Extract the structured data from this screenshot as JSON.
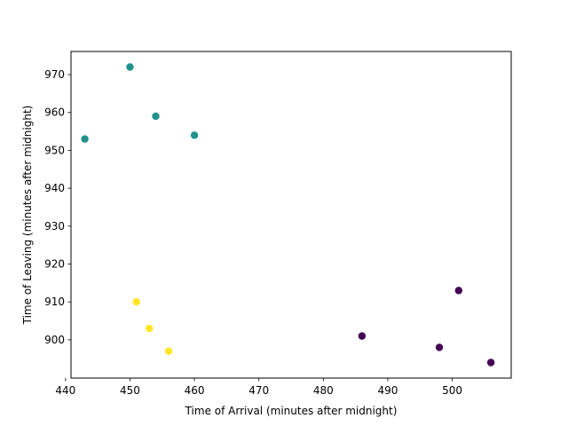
{
  "chart_data": {
    "type": "scatter",
    "title": "",
    "xlabel": "Time of Arrival (minutes after midnight)",
    "ylabel": "Time of Leaving (minutes after midnight)",
    "xlim": [
      440.85,
      509.15
    ],
    "ylim": [
      889.9,
      976.1
    ],
    "xticks": [
      440,
      450,
      460,
      470,
      480,
      490,
      500
    ],
    "yticks": [
      900,
      910,
      920,
      930,
      940,
      950,
      960,
      970
    ],
    "grid": false,
    "series": [
      {
        "color": "#440154",
        "points": [
          {
            "x": 486,
            "y": 901
          },
          {
            "x": 498,
            "y": 898
          },
          {
            "x": 501,
            "y": 913
          },
          {
            "x": 506,
            "y": 894
          }
        ]
      },
      {
        "color": "#21918c",
        "points": [
          {
            "x": 443,
            "y": 953
          },
          {
            "x": 450,
            "y": 972
          },
          {
            "x": 454,
            "y": 959
          },
          {
            "x": 460,
            "y": 954
          }
        ]
      },
      {
        "color": "#fde725",
        "points": [
          {
            "x": 451,
            "y": 910
          },
          {
            "x": 453,
            "y": 903
          },
          {
            "x": 456,
            "y": 897
          }
        ]
      }
    ]
  }
}
